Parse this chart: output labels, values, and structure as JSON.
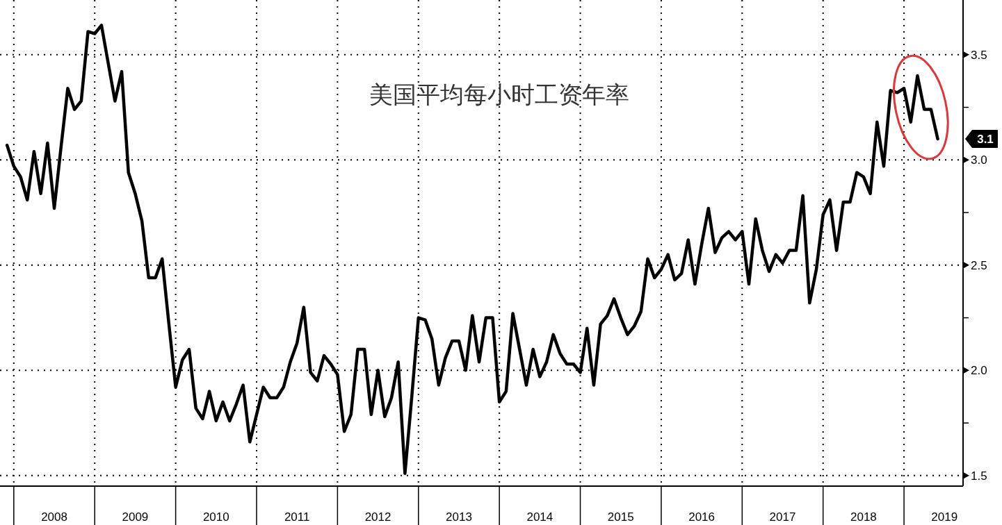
{
  "chart_data": {
    "type": "line",
    "title": "美国平均每小时工资年率",
    "x": [
      "2007-12",
      "2008-01",
      "2008-02",
      "2008-03",
      "2008-04",
      "2008-05",
      "2008-06",
      "2008-07",
      "2008-08",
      "2008-09",
      "2008-10",
      "2008-11",
      "2008-12",
      "2009-01",
      "2009-02",
      "2009-03",
      "2009-04",
      "2009-05",
      "2009-06",
      "2009-07",
      "2009-08",
      "2009-09",
      "2009-10",
      "2009-11",
      "2009-12",
      "2010-01",
      "2010-02",
      "2010-03",
      "2010-04",
      "2010-05",
      "2010-06",
      "2010-07",
      "2010-08",
      "2010-09",
      "2010-10",
      "2010-11",
      "2010-12",
      "2011-01",
      "2011-02",
      "2011-03",
      "2011-04",
      "2011-05",
      "2011-06",
      "2011-07",
      "2011-08",
      "2011-09",
      "2011-10",
      "2011-11",
      "2011-12",
      "2012-01",
      "2012-02",
      "2012-03",
      "2012-04",
      "2012-05",
      "2012-06",
      "2012-07",
      "2012-08",
      "2012-09",
      "2012-10",
      "2012-11",
      "2012-12",
      "2013-01",
      "2013-02",
      "2013-03",
      "2013-04",
      "2013-05",
      "2013-06",
      "2013-07",
      "2013-08",
      "2013-09",
      "2013-10",
      "2013-11",
      "2013-12",
      "2014-01",
      "2014-02",
      "2014-03",
      "2014-04",
      "2014-05",
      "2014-06",
      "2014-07",
      "2014-08",
      "2014-09",
      "2014-10",
      "2014-11",
      "2014-12",
      "2015-01",
      "2015-02",
      "2015-03",
      "2015-04",
      "2015-05",
      "2015-06",
      "2015-07",
      "2015-08",
      "2015-09",
      "2015-10",
      "2015-11",
      "2015-12",
      "2016-01",
      "2016-02",
      "2016-03",
      "2016-04",
      "2016-05",
      "2016-06",
      "2016-07",
      "2016-08",
      "2016-09",
      "2016-10",
      "2016-11",
      "2016-12",
      "2017-01",
      "2017-02",
      "2017-03",
      "2017-04",
      "2017-05",
      "2017-06",
      "2017-07",
      "2017-08",
      "2017-09",
      "2017-10",
      "2017-11",
      "2017-12",
      "2018-01",
      "2018-02",
      "2018-03",
      "2018-04",
      "2018-05",
      "2018-06",
      "2018-07",
      "2018-08",
      "2018-09",
      "2018-10",
      "2018-11",
      "2018-12",
      "2019-01",
      "2019-02",
      "2019-03",
      "2019-04",
      "2019-05",
      "2019-06"
    ],
    "series": [
      {
        "color": "#000000",
        "values": [
          3.07,
          2.97,
          2.92,
          2.81,
          3.04,
          2.84,
          3.08,
          2.77,
          3.06,
          3.34,
          3.24,
          3.28,
          3.61,
          3.6,
          3.64,
          3.46,
          3.28,
          3.42,
          2.94,
          2.84,
          2.71,
          2.44,
          2.44,
          2.53,
          2.22,
          1.92,
          2.05,
          2.1,
          1.82,
          1.77,
          1.9,
          1.76,
          1.85,
          1.76,
          1.84,
          1.93,
          1.66,
          1.79,
          1.92,
          1.87,
          1.87,
          1.92,
          2.04,
          2.13,
          2.3,
          1.99,
          1.95,
          2.07,
          2.03,
          1.98,
          1.71,
          1.79,
          2.1,
          2.1,
          1.79,
          2.0,
          1.78,
          1.87,
          2.04,
          1.51,
          1.87,
          2.25,
          2.24,
          2.15,
          1.93,
          2.06,
          2.14,
          2.14,
          2.0,
          2.26,
          2.04,
          2.25,
          2.25,
          1.85,
          1.9,
          2.27,
          2.1,
          1.93,
          2.1,
          1.97,
          2.04,
          2.17,
          2.08,
          2.03,
          2.03,
          1.99,
          2.2,
          1.93,
          2.22,
          2.26,
          2.34,
          2.25,
          2.17,
          2.21,
          2.28,
          2.53,
          2.44,
          2.48,
          2.55,
          2.43,
          2.46,
          2.62,
          2.41,
          2.6,
          2.77,
          2.56,
          2.63,
          2.66,
          2.62,
          2.66,
          2.41,
          2.72,
          2.57,
          2.47,
          2.55,
          2.51,
          2.57,
          2.57,
          2.83,
          2.32,
          2.48,
          2.74,
          2.81,
          2.57,
          2.8,
          2.8,
          2.94,
          2.92,
          2.84,
          3.18,
          2.97,
          3.33,
          3.32,
          3.34,
          3.18,
          3.4,
          3.24,
          3.24,
          3.1
        ]
      }
    ],
    "xlim": [
      "2007-10-30",
      "2019-09-24"
    ],
    "ylim": [
      1.45,
      3.76
    ],
    "xticks": [
      {
        "value": "2008-01",
        "label": null
      },
      {
        "value": "2008-07",
        "label": "2008"
      },
      {
        "value": "2009-01",
        "label": null
      },
      {
        "value": "2009-07",
        "label": "2009"
      },
      {
        "value": "2010-01",
        "label": null
      },
      {
        "value": "2010-07",
        "label": "2010"
      },
      {
        "value": "2011-01",
        "label": null
      },
      {
        "value": "2011-07",
        "label": "2011"
      },
      {
        "value": "2012-01",
        "label": null
      },
      {
        "value": "2012-07",
        "label": "2012"
      },
      {
        "value": "2013-01",
        "label": null
      },
      {
        "value": "2013-07",
        "label": "2013"
      },
      {
        "value": "2014-01",
        "label": null
      },
      {
        "value": "2014-07",
        "label": "2014"
      },
      {
        "value": "2015-01",
        "label": null
      },
      {
        "value": "2015-07",
        "label": "2015"
      },
      {
        "value": "2016-01",
        "label": null
      },
      {
        "value": "2016-07",
        "label": "2016"
      },
      {
        "value": "2017-01",
        "label": null
      },
      {
        "value": "2017-07",
        "label": "2017"
      },
      {
        "value": "2018-01",
        "label": null
      },
      {
        "value": "2018-07",
        "label": "2018"
      },
      {
        "value": "2019-01",
        "label": null
      },
      {
        "value": "2019-07",
        "label": "2019"
      }
    ],
    "yticks": [
      {
        "value": 1.5,
        "label": "1.5"
      },
      {
        "value": 1.75,
        "label": null
      },
      {
        "value": 2.0,
        "label": "2.0"
      },
      {
        "value": 2.25,
        "label": null
      },
      {
        "value": 2.5,
        "label": "2.5"
      },
      {
        "value": 2.75,
        "label": null
      },
      {
        "value": 3.0,
        "label": "3.0"
      },
      {
        "value": 3.25,
        "label": null
      },
      {
        "value": 3.5,
        "label": "3.5"
      }
    ],
    "grid": true,
    "annotations": [
      "3.1"
    ]
  }
}
